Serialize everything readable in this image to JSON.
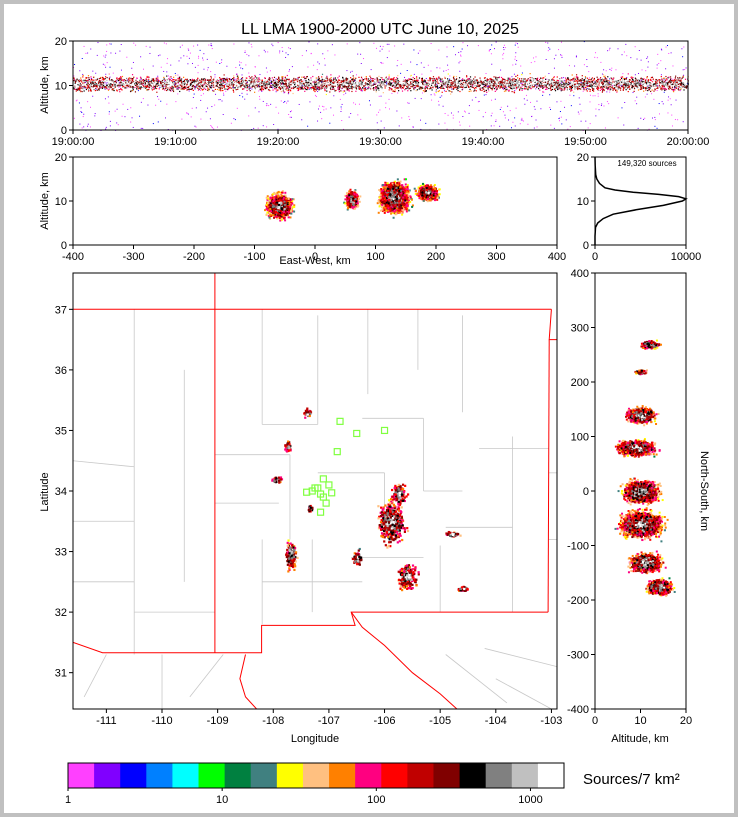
{
  "title": "LL LMA 1900-2000 UTC June 10, 2025",
  "colors": {
    "border": "#c0c0c0",
    "state_line": "#ff0000",
    "county_line": "#c8c8c8",
    "station": "#80ff40",
    "density_line": "#000000"
  },
  "chart_data": [
    {
      "id": "time-height",
      "type": "scatter",
      "ylabel": "Altitude, km",
      "xlim": [
        "19:00:00",
        "20:00:00"
      ],
      "ylim": [
        0,
        20
      ],
      "xticks": [
        "19:00:00",
        "19:10:00",
        "19:20:00",
        "19:30:00",
        "19:40:00",
        "19:50:00",
        "20:00:00"
      ],
      "yticks": [
        0,
        10,
        20
      ],
      "band_altitude_km": [
        7,
        14
      ],
      "peak_altitude_km": 10.5
    },
    {
      "id": "ew-height",
      "type": "scatter",
      "xlabel": "East-West, km",
      "ylabel": "Altitude, km",
      "xlim": [
        -400,
        400
      ],
      "ylim": [
        0,
        20
      ],
      "xticks": [
        -400,
        -300,
        -200,
        -100,
        0,
        100,
        200,
        300,
        400
      ],
      "yticks": [
        0,
        10,
        20
      ],
      "clusters": [
        {
          "x": -60,
          "y": 9,
          "w": 60,
          "h": 8
        },
        {
          "x": 60,
          "y": 10.5,
          "w": 30,
          "h": 6
        },
        {
          "x": 130,
          "y": 11,
          "w": 70,
          "h": 10
        },
        {
          "x": 185,
          "y": 12,
          "w": 50,
          "h": 5
        }
      ]
    },
    {
      "id": "altitude-histogram",
      "type": "line",
      "xlim": [
        0,
        10000
      ],
      "ylim": [
        0,
        20
      ],
      "xticks": [
        0,
        10000
      ],
      "yticks": [
        0,
        10,
        20
      ],
      "annotation": "149,320 sources",
      "altitude": [
        0,
        2,
        4,
        5,
        6,
        7,
        8,
        9,
        10,
        10.5,
        11,
        11.5,
        12,
        12.5,
        13,
        14,
        15,
        16,
        18,
        20
      ],
      "count": [
        0,
        0,
        50,
        300,
        900,
        2000,
        4500,
        7500,
        9600,
        10000,
        9200,
        7000,
        4200,
        2200,
        1100,
        500,
        200,
        80,
        20,
        0
      ]
    },
    {
      "id": "plan-view",
      "type": "scatter",
      "xlabel": "Longitude",
      "ylabel": "Latitude",
      "xlim": [
        -111.6,
        -102.9
      ],
      "ylim": [
        30.4,
        37.6
      ],
      "xticks": [
        -111,
        -110,
        -109,
        -108,
        -107,
        -106,
        -105,
        -104,
        -103
      ],
      "yticks": [
        31,
        32,
        33,
        34,
        35,
        36,
        37
      ],
      "clusters": [
        {
          "lon": -105.9,
          "lat": 33.5,
          "rx": 0.35,
          "ry": 0.5
        },
        {
          "lon": -105.75,
          "lat": 33.95,
          "rx": 0.2,
          "ry": 0.25
        },
        {
          "lon": -105.6,
          "lat": 32.6,
          "rx": 0.25,
          "ry": 0.3
        },
        {
          "lon": -107.7,
          "lat": 32.95,
          "rx": 0.15,
          "ry": 0.35
        },
        {
          "lon": -106.5,
          "lat": 32.9,
          "rx": 0.12,
          "ry": 0.2
        },
        {
          "lon": -107.75,
          "lat": 34.75,
          "rx": 0.08,
          "ry": 0.12
        },
        {
          "lon": -107.95,
          "lat": 34.2,
          "rx": 0.15,
          "ry": 0.08
        },
        {
          "lon": -107.4,
          "lat": 35.3,
          "rx": 0.1,
          "ry": 0.1
        },
        {
          "lon": -107.35,
          "lat": 33.72,
          "rx": 0.06,
          "ry": 0.08
        },
        {
          "lon": -104.8,
          "lat": 33.3,
          "rx": 0.2,
          "ry": 0.06
        },
        {
          "lon": -104.6,
          "lat": 32.4,
          "rx": 0.15,
          "ry": 0.06
        }
      ],
      "stations": [
        [
          -106.8,
          35.15
        ],
        [
          -106.5,
          34.95
        ],
        [
          -106.0,
          35.0
        ],
        [
          -106.85,
          34.65
        ],
        [
          -107.0,
          34.1
        ],
        [
          -107.2,
          34.05
        ],
        [
          -107.3,
          34.0
        ],
        [
          -107.4,
          33.98
        ],
        [
          -107.15,
          33.95
        ],
        [
          -106.95,
          33.97
        ],
        [
          -107.1,
          33.9
        ],
        [
          -107.05,
          33.8
        ],
        [
          -107.15,
          33.65
        ],
        [
          -107.1,
          34.2
        ],
        [
          -107.25,
          34.05
        ]
      ]
    },
    {
      "id": "ns-height",
      "type": "scatter",
      "xlabel": "Altitude, km",
      "ylabel": "North-South, km",
      "xlim": [
        0,
        20
      ],
      "ylim": [
        -400,
        400
      ],
      "xticks": [
        0,
        10,
        20
      ],
      "yticks": [
        -400,
        -300,
        -200,
        -100,
        0,
        100,
        200,
        300,
        400
      ],
      "clusters": [
        {
          "ns": 270,
          "alt": 12,
          "h": 20,
          "w": 6
        },
        {
          "ns": 220,
          "alt": 10,
          "h": 10,
          "w": 4
        },
        {
          "ns": 140,
          "alt": 10,
          "h": 40,
          "w": 9
        },
        {
          "ns": 80,
          "alt": 9,
          "h": 40,
          "w": 12
        },
        {
          "ns": 0,
          "alt": 10,
          "h": 60,
          "w": 11
        },
        {
          "ns": -60,
          "alt": 10,
          "h": 70,
          "w": 13
        },
        {
          "ns": -130,
          "alt": 11,
          "h": 50,
          "w": 10
        },
        {
          "ns": -175,
          "alt": 14,
          "h": 40,
          "w": 8
        }
      ]
    },
    {
      "id": "colorbar",
      "type": "table",
      "label": "Sources/7 km²",
      "tick_labels": [
        "1",
        "10",
        "100",
        "1000"
      ],
      "tick_values": [
        1,
        10,
        100,
        1000
      ],
      "range": [
        1,
        1650
      ],
      "colors": [
        "#ff40ff",
        "#8000ff",
        "#0000ff",
        "#0080ff",
        "#00ffff",
        "#00ff00",
        "#008040",
        "#408080",
        "#ffff00",
        "#ffc080",
        "#ff8000",
        "#ff0080",
        "#ff0000",
        "#c00000",
        "#800000",
        "#000000",
        "#808080",
        "#c0c0c0",
        "#ffffff"
      ]
    }
  ]
}
